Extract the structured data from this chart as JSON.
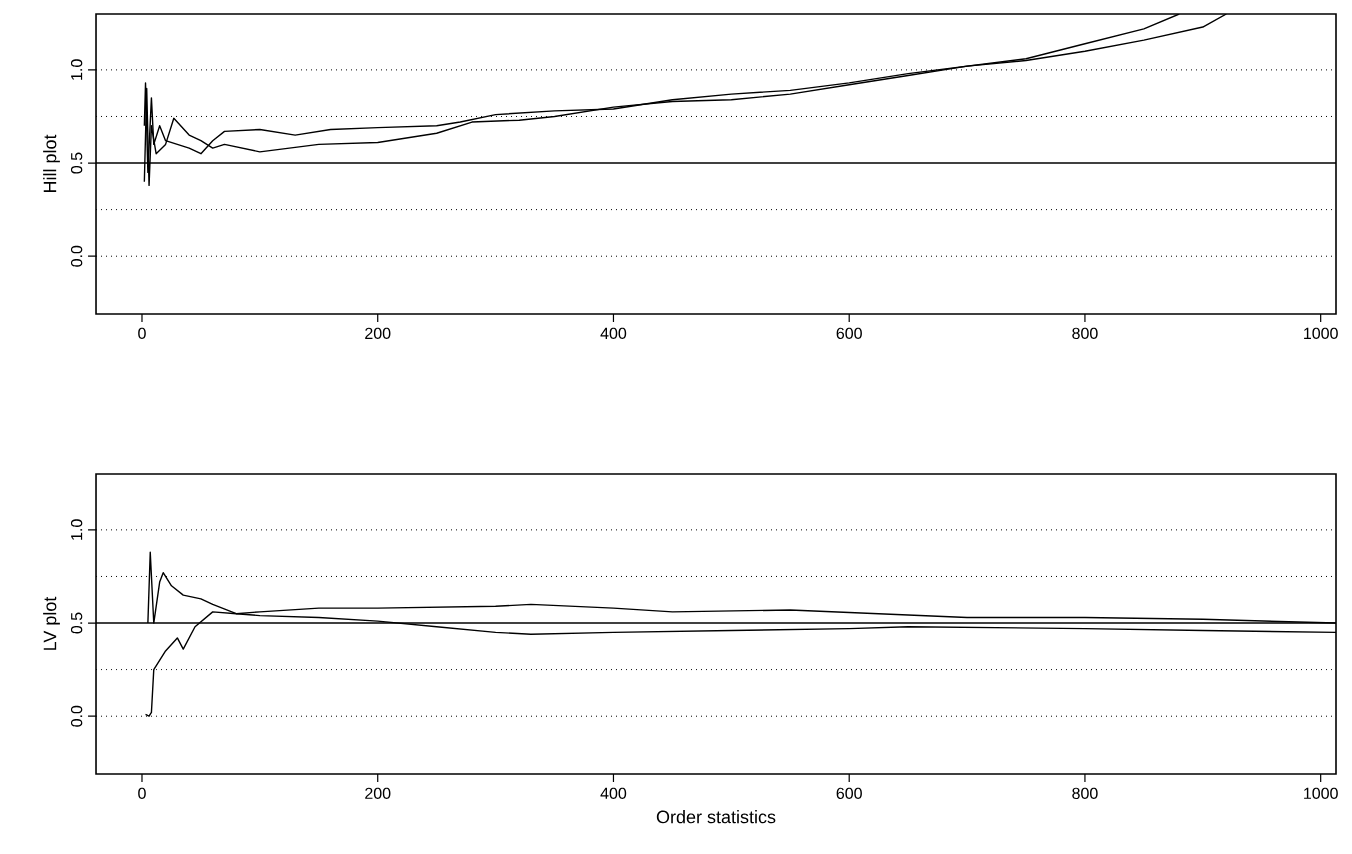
{
  "chart_data": [
    {
      "type": "line",
      "ylabel": "Hill plot",
      "xlim": [
        -39,
        1013
      ],
      "ylim": [
        -0.31,
        1.3
      ],
      "xticks": [
        0,
        200,
        400,
        600,
        800,
        1000
      ],
      "yticks": [
        {
          "value": 0,
          "label": "0.0"
        },
        {
          "value": 0.5,
          "label": "0.5"
        },
        {
          "value": 1,
          "label": "1.0"
        }
      ],
      "ref_lines": [
        {
          "axis": "y",
          "value": 0.5,
          "line_style": "solid"
        },
        {
          "axis": "y",
          "value": 0,
          "line_style": "dotted"
        },
        {
          "axis": "y",
          "value": 0.25,
          "line_style": "dotted"
        },
        {
          "axis": "y",
          "value": 0.75,
          "line_style": "dotted"
        },
        {
          "axis": "y",
          "value": 1.0,
          "line_style": "dotted"
        }
      ],
      "series": [
        {
          "color": "#000000",
          "x": [
            2,
            3,
            5,
            8,
            10,
            15,
            20,
            30,
            40,
            50,
            60,
            70,
            100,
            130,
            160,
            200,
            250,
            270,
            300,
            350,
            400,
            450,
            500,
            550,
            600,
            650,
            700,
            750,
            800,
            850,
            880
          ],
          "values": [
            0.7,
            0.93,
            0.45,
            0.85,
            0.6,
            0.7,
            0.62,
            0.6,
            0.58,
            0.55,
            0.62,
            0.67,
            0.68,
            0.65,
            0.68,
            0.69,
            0.7,
            0.72,
            0.76,
            0.78,
            0.79,
            0.84,
            0.87,
            0.89,
            0.93,
            0.98,
            1.02,
            1.06,
            1.14,
            1.22,
            1.3
          ]
        },
        {
          "color": "#000000",
          "x": [
            2,
            4,
            6,
            8,
            12,
            20,
            27,
            40,
            50,
            60,
            70,
            100,
            150,
            200,
            250,
            280,
            320,
            350,
            400,
            450,
            500,
            550,
            600,
            650,
            700,
            750,
            800,
            850,
            900,
            920
          ],
          "values": [
            0.4,
            0.9,
            0.38,
            0.7,
            0.55,
            0.6,
            0.74,
            0.65,
            0.62,
            0.58,
            0.6,
            0.56,
            0.6,
            0.61,
            0.66,
            0.72,
            0.73,
            0.75,
            0.8,
            0.83,
            0.84,
            0.87,
            0.92,
            0.97,
            1.02,
            1.05,
            1.1,
            1.16,
            1.23,
            1.3
          ]
        }
      ]
    },
    {
      "type": "line",
      "xlabel": "Order statistics",
      "ylabel": "LV plot",
      "xlim": [
        -39,
        1013
      ],
      "ylim": [
        -0.31,
        1.3
      ],
      "xticks": [
        0,
        200,
        400,
        600,
        800,
        1000
      ],
      "yticks": [
        {
          "value": 0,
          "label": "0.0"
        },
        {
          "value": 0.5,
          "label": "0.5"
        },
        {
          "value": 1,
          "label": "1.0"
        }
      ],
      "ref_lines": [
        {
          "axis": "y",
          "value": 0.5,
          "line_style": "solid"
        },
        {
          "axis": "y",
          "value": 0,
          "line_style": "dotted"
        },
        {
          "axis": "y",
          "value": 0.25,
          "line_style": "dotted"
        },
        {
          "axis": "y",
          "value": 0.75,
          "line_style": "dotted"
        },
        {
          "axis": "y",
          "value": 1.0,
          "line_style": "dotted"
        }
      ],
      "series": [
        {
          "color": "#000000",
          "x": [
            5,
            7,
            10,
            15,
            18,
            25,
            35,
            50,
            60,
            80,
            100,
            150,
            200,
            250,
            300,
            330,
            400,
            500,
            600,
            650,
            800,
            900,
            1013
          ],
          "values": [
            0.5,
            0.88,
            0.5,
            0.72,
            0.77,
            0.7,
            0.65,
            0.63,
            0.6,
            0.55,
            0.54,
            0.53,
            0.51,
            0.48,
            0.45,
            0.44,
            0.45,
            0.46,
            0.47,
            0.48,
            0.47,
            0.46,
            0.45
          ]
        },
        {
          "color": "#000000",
          "x": [
            3,
            6,
            8,
            10,
            20,
            30,
            35,
            45,
            60,
            80,
            100,
            150,
            200,
            300,
            330,
            400,
            450,
            550,
            700,
            800,
            900,
            1013
          ],
          "values": [
            0.01,
            0.0,
            0.02,
            0.25,
            0.35,
            0.42,
            0.36,
            0.48,
            0.56,
            0.55,
            0.56,
            0.58,
            0.58,
            0.59,
            0.6,
            0.58,
            0.56,
            0.57,
            0.53,
            0.53,
            0.52,
            0.5
          ]
        }
      ]
    }
  ]
}
